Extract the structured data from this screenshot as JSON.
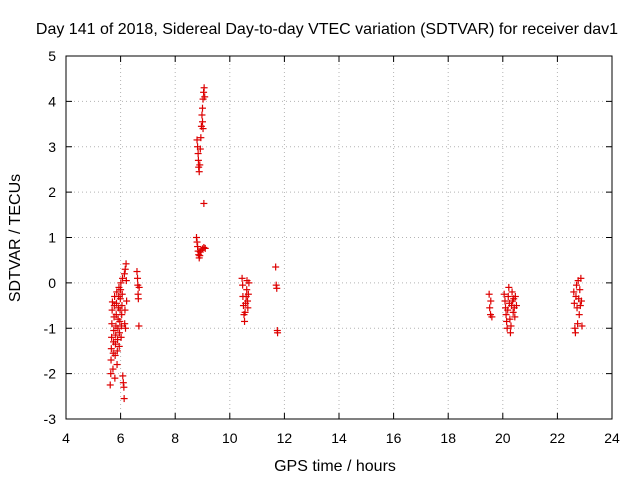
{
  "chart_data": {
    "type": "scatter",
    "title": "Day 141 of 2018, Sidereal Day-to-day VTEC variation (SDTVAR) for receiver dav1",
    "xlabel": "GPS time / hours",
    "ylabel": "SDTVAR / TECUs",
    "xlim": [
      4,
      24
    ],
    "ylim": [
      -3,
      5
    ],
    "xticks": [
      4,
      6,
      8,
      10,
      12,
      14,
      16,
      18,
      20,
      22,
      24
    ],
    "yticks": [
      -3,
      -2,
      -1,
      0,
      1,
      2,
      3,
      4,
      5
    ],
    "grid": true,
    "marker": "plus",
    "color": "#dd0000",
    "series": [
      {
        "name": "dav1",
        "points": [
          [
            5.62,
            -2.25
          ],
          [
            5.64,
            -2.0
          ],
          [
            5.65,
            -1.7
          ],
          [
            5.66,
            -1.45
          ],
          [
            5.67,
            -1.2
          ],
          [
            5.68,
            -0.9
          ],
          [
            5.69,
            -0.6
          ],
          [
            5.7,
            -0.42
          ],
          [
            5.72,
            -1.9
          ],
          [
            5.73,
            -1.55
          ],
          [
            5.74,
            -1.3
          ],
          [
            5.75,
            -1.05
          ],
          [
            5.76,
            -0.75
          ],
          [
            5.77,
            -0.5
          ],
          [
            5.78,
            -0.3
          ],
          [
            5.79,
            -2.1
          ],
          [
            5.8,
            -1.6
          ],
          [
            5.81,
            -1.35
          ],
          [
            5.82,
            -1.15
          ],
          [
            5.83,
            -0.95
          ],
          [
            5.84,
            -0.7
          ],
          [
            5.85,
            -0.45
          ],
          [
            5.86,
            -0.2
          ],
          [
            5.87,
            -1.8
          ],
          [
            5.88,
            -1.5
          ],
          [
            5.89,
            -1.25
          ],
          [
            5.9,
            -1.0
          ],
          [
            5.91,
            -0.8
          ],
          [
            5.92,
            -0.55
          ],
          [
            5.93,
            -0.3
          ],
          [
            5.94,
            -0.1
          ],
          [
            5.95,
            -1.4
          ],
          [
            5.96,
            -1.1
          ],
          [
            5.97,
            -0.85
          ],
          [
            5.98,
            -0.6
          ],
          [
            5.99,
            -0.35
          ],
          [
            6.0,
            -0.15
          ],
          [
            6.01,
            0.0
          ],
          [
            6.02,
            -1.2
          ],
          [
            6.03,
            -0.95
          ],
          [
            6.04,
            -0.7
          ],
          [
            6.05,
            -0.5
          ],
          [
            6.06,
            -0.25
          ],
          [
            6.07,
            0.1
          ],
          [
            6.08,
            -2.05
          ],
          [
            6.1,
            -2.2
          ],
          [
            6.12,
            -2.3
          ],
          [
            6.13,
            -2.55
          ],
          [
            6.14,
            0.2
          ],
          [
            6.15,
            -0.9
          ],
          [
            6.16,
            -0.6
          ],
          [
            6.17,
            0.3
          ],
          [
            6.18,
            -1.0
          ],
          [
            6.2,
            0.42
          ],
          [
            6.21,
            0.05
          ],
          [
            6.22,
            -0.4
          ],
          [
            6.6,
            0.25
          ],
          [
            6.62,
            0.1
          ],
          [
            6.63,
            -0.05
          ],
          [
            6.64,
            -0.25
          ],
          [
            6.65,
            -0.35
          ],
          [
            6.67,
            -0.95
          ],
          [
            6.68,
            -0.1
          ],
          [
            8.8,
            3.15
          ],
          [
            8.82,
            3.0
          ],
          [
            8.84,
            2.85
          ],
          [
            8.85,
            2.7
          ],
          [
            8.86,
            2.55
          ],
          [
            8.88,
            2.45
          ],
          [
            8.9,
            2.6
          ],
          [
            8.92,
            2.95
          ],
          [
            8.94,
            3.2
          ],
          [
            8.96,
            3.45
          ],
          [
            8.98,
            3.7
          ],
          [
            9.0,
            3.85
          ],
          [
            9.02,
            4.05
          ],
          [
            9.04,
            4.2
          ],
          [
            9.06,
            4.3
          ],
          [
            9.08,
            4.1
          ],
          [
            9.0,
            3.55
          ],
          [
            9.02,
            3.4
          ],
          [
            9.05,
            1.75
          ],
          [
            8.78,
            1.0
          ],
          [
            8.8,
            0.9
          ],
          [
            8.82,
            0.8
          ],
          [
            8.84,
            0.7
          ],
          [
            8.86,
            0.62
          ],
          [
            8.88,
            0.55
          ],
          [
            8.9,
            0.6
          ],
          [
            8.92,
            0.68
          ],
          [
            8.95,
            0.72
          ],
          [
            9.0,
            0.75
          ],
          [
            9.05,
            0.78
          ],
          [
            9.1,
            0.76
          ],
          [
            10.45,
            0.1
          ],
          [
            10.47,
            -0.05
          ],
          [
            10.48,
            -0.3
          ],
          [
            10.5,
            -0.5
          ],
          [
            10.52,
            -0.7
          ],
          [
            10.54,
            -0.85
          ],
          [
            10.56,
            -0.65
          ],
          [
            10.58,
            -0.45
          ],
          [
            10.6,
            -0.3
          ],
          [
            10.62,
            -0.15
          ],
          [
            10.63,
            0.05
          ],
          [
            10.65,
            -0.4
          ],
          [
            10.66,
            -0.55
          ],
          [
            10.68,
            -0.25
          ],
          [
            10.7,
            0.0
          ],
          [
            11.68,
            0.35
          ],
          [
            11.7,
            -0.05
          ],
          [
            11.72,
            -0.12
          ],
          [
            11.74,
            -1.05
          ],
          [
            11.75,
            -1.1
          ],
          [
            19.5,
            -0.25
          ],
          [
            19.52,
            -0.55
          ],
          [
            19.55,
            -0.7
          ],
          [
            19.56,
            -0.4
          ],
          [
            19.6,
            -0.75
          ],
          [
            20.05,
            -0.25
          ],
          [
            20.08,
            -0.4
          ],
          [
            20.1,
            -0.55
          ],
          [
            20.12,
            -0.7
          ],
          [
            20.14,
            -0.85
          ],
          [
            20.16,
            -1.0
          ],
          [
            20.18,
            -0.6
          ],
          [
            20.2,
            -0.3
          ],
          [
            20.22,
            -0.1
          ],
          [
            20.24,
            -0.45
          ],
          [
            20.26,
            -0.8
          ],
          [
            20.28,
            -1.1
          ],
          [
            20.3,
            -0.95
          ],
          [
            20.32,
            -0.5
          ],
          [
            20.34,
            -0.2
          ],
          [
            20.36,
            -0.4
          ],
          [
            20.38,
            -0.65
          ],
          [
            20.4,
            -0.35
          ],
          [
            20.42,
            -0.55
          ],
          [
            20.44,
            -0.75
          ],
          [
            20.46,
            -0.3
          ],
          [
            20.5,
            -0.5
          ],
          [
            22.6,
            -0.2
          ],
          [
            22.62,
            -0.45
          ],
          [
            22.64,
            -1.0
          ],
          [
            22.66,
            -1.1
          ],
          [
            22.68,
            -0.3
          ],
          [
            22.7,
            -0.05
          ],
          [
            22.72,
            -0.55
          ],
          [
            22.74,
            -0.9
          ],
          [
            22.76,
            0.05
          ],
          [
            22.78,
            -0.35
          ],
          [
            22.8,
            -0.7
          ],
          [
            22.82,
            -0.15
          ],
          [
            22.84,
            -0.5
          ],
          [
            22.86,
            0.1
          ],
          [
            22.88,
            -0.4
          ],
          [
            22.9,
            -0.95
          ]
        ]
      }
    ]
  }
}
